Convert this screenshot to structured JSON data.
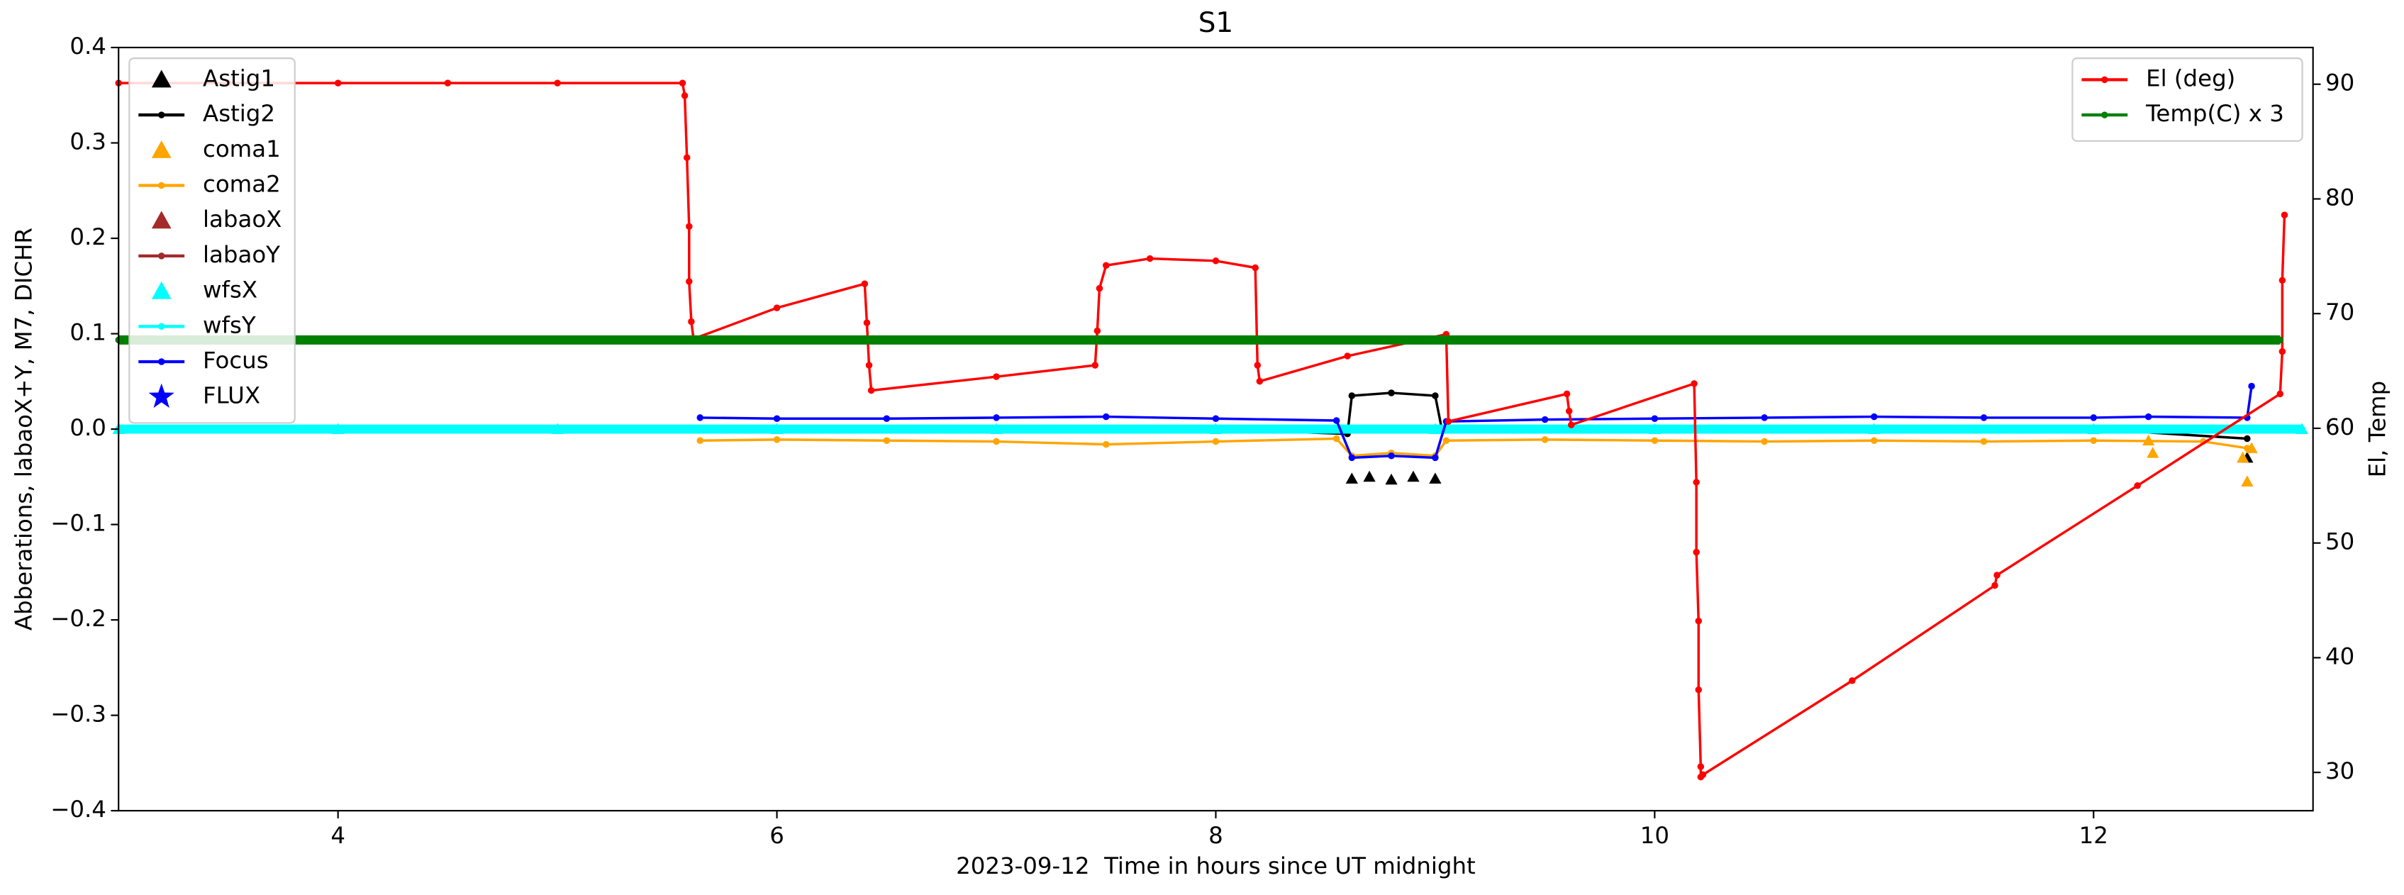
{
  "chart_data": {
    "type": "line",
    "title": "S1",
    "x_label": "2023-09-12  Time in hours since UT midnight",
    "y_label": "Abberations, labaoX+Y, M7, DICHR",
    "y2_label": "El, Temp",
    "xlim": [
      3,
      13
    ],
    "xticks": [
      4,
      6,
      8,
      10,
      12
    ],
    "ylim": [
      -0.4,
      0.4
    ],
    "yticks": [
      {
        "value": -0.4,
        "label": "−0.4"
      },
      {
        "value": -0.3,
        "label": "−0.3"
      },
      {
        "value": -0.2,
        "label": "−0.2"
      },
      {
        "value": -0.1,
        "label": "−0.1"
      },
      {
        "value": 0,
        "label": "0.0"
      },
      0.1,
      0.2,
      0.3,
      0.4
    ],
    "y2lim": [
      26.66,
      93.2
    ],
    "y2ticks": [
      30,
      40,
      50,
      60,
      70,
      80,
      90
    ],
    "legend": "upper left",
    "legend2": "upper right",
    "series": [
      {
        "name": "Astig1",
        "color": "#000000",
        "marker": "triangle",
        "line": false,
        "x": [
          8.62,
          8.7,
          8.8,
          8.9,
          9.0,
          12.7
        ],
        "values": [
          -0.052,
          -0.05,
          -0.053,
          -0.05,
          -0.052,
          -0.03
        ]
      },
      {
        "name": "Astig2",
        "color": "#000000",
        "marker": "dot",
        "line": true,
        "x": [
          5.65,
          7.0,
          8.0,
          8.6,
          8.62,
          8.8,
          9.0,
          9.03,
          10.0,
          11.0,
          12.0,
          12.7
        ],
        "values": [
          0.0,
          0.001,
          0.0,
          -0.005,
          0.035,
          0.038,
          0.035,
          0.0,
          0.0,
          0.0,
          0.0,
          -0.01
        ]
      },
      {
        "name": "coma1",
        "color": "#ffa500",
        "marker": "triangle",
        "line": false,
        "x": [
          12.25,
          12.27,
          12.68,
          12.7,
          12.72
        ],
        "values": [
          -0.012,
          -0.025,
          -0.03,
          -0.055,
          -0.02
        ]
      },
      {
        "name": "coma2",
        "color": "#ffa500",
        "marker": "dot",
        "line": true,
        "x": [
          5.65,
          6.0,
          6.5,
          7.0,
          7.5,
          8.0,
          8.55,
          8.62,
          8.8,
          9.0,
          9.05,
          9.5,
          10.0,
          10.5,
          11.0,
          11.5,
          12.0,
          12.5,
          12.7
        ],
        "values": [
          -0.012,
          -0.011,
          -0.012,
          -0.013,
          -0.016,
          -0.013,
          -0.01,
          -0.028,
          -0.025,
          -0.028,
          -0.012,
          -0.011,
          -0.012,
          -0.013,
          -0.012,
          -0.013,
          -0.012,
          -0.013,
          -0.02
        ]
      },
      {
        "name": "labaoX",
        "color": "#a52a2a",
        "marker": "triangle",
        "line": false,
        "x": [],
        "values": []
      },
      {
        "name": "labaoY",
        "color": "#a52a2a",
        "marker": "dot",
        "line": true,
        "x": [],
        "values": []
      },
      {
        "name": "wfsX",
        "color": "#00ffff",
        "marker": "triangle",
        "line": false,
        "x": [
          3.0,
          4.0,
          5.0,
          6.0,
          7.0,
          8.0,
          9.0,
          10.0,
          11.0,
          12.0,
          12.95
        ],
        "values": [
          0,
          0,
          0,
          0,
          0,
          0,
          0,
          0,
          0,
          0,
          0
        ]
      },
      {
        "name": "wfsY",
        "color": "#00ffff",
        "marker": "dot",
        "line": true,
        "thick": true,
        "x": [
          3.0,
          12.95
        ],
        "values": [
          0,
          0
        ]
      },
      {
        "name": "Focus",
        "color": "#0000ff",
        "marker": "dot",
        "line": true,
        "x": [
          5.65,
          6.0,
          6.5,
          7.0,
          7.5,
          8.0,
          8.55,
          8.62,
          8.8,
          9.0,
          9.05,
          9.5,
          10.0,
          10.5,
          11.0,
          11.5,
          12.0,
          12.25,
          12.7,
          12.72
        ],
        "values": [
          0.012,
          0.011,
          0.011,
          0.012,
          0.013,
          0.011,
          0.009,
          -0.03,
          -0.028,
          -0.03,
          0.008,
          0.01,
          0.011,
          0.012,
          0.013,
          0.012,
          0.012,
          0.013,
          0.012,
          0.045
        ]
      },
      {
        "name": "FLUX",
        "color": "#0000ff",
        "marker": "star",
        "line": false,
        "x": [],
        "values": []
      },
      {
        "name": "El (deg)",
        "color": "#ff0000",
        "marker": "dot",
        "line": true,
        "axis": "y2",
        "x": [
          3.0,
          3.5,
          4.0,
          4.5,
          5.0,
          5.57,
          5.58,
          5.59,
          5.6,
          5.6,
          5.61,
          5.62,
          6.0,
          6.4,
          6.41,
          6.42,
          6.43,
          7.0,
          7.45,
          7.46,
          7.47,
          7.5,
          7.7,
          8.0,
          8.18,
          8.19,
          8.2,
          8.6,
          9.05,
          9.06,
          9.6,
          9.61,
          9.62,
          10.18,
          10.19,
          10.19,
          10.2,
          10.2,
          10.21,
          10.21,
          10.22,
          10.9,
          11.55,
          11.56,
          12.2,
          12.85,
          12.86,
          12.86,
          12.87
        ],
        "values": [
          90.1,
          90.1,
          90.1,
          90.1,
          90.1,
          90.1,
          89.0,
          83.6,
          77.6,
          72.8,
          69.3,
          67.8,
          70.5,
          72.6,
          69.2,
          65.5,
          63.3,
          64.5,
          65.5,
          68.5,
          72.2,
          74.2,
          74.8,
          74.6,
          74.0,
          65.5,
          64.1,
          66.3,
          68.2,
          60.6,
          63.0,
          61.5,
          60.3,
          63.9,
          55.3,
          49.2,
          43.2,
          37.2,
          30.5,
          29.6,
          29.8,
          38.0,
          46.3,
          47.2,
          55.0,
          63.0,
          66.7,
          72.9,
          78.6
        ]
      },
      {
        "name": "Temp(C) x 3",
        "color": "#008000",
        "marker": "dot",
        "line": true,
        "axis": "y2",
        "thick": true,
        "x": [
          3.0,
          12.85
        ],
        "values": [
          67.7,
          67.7
        ]
      }
    ]
  }
}
